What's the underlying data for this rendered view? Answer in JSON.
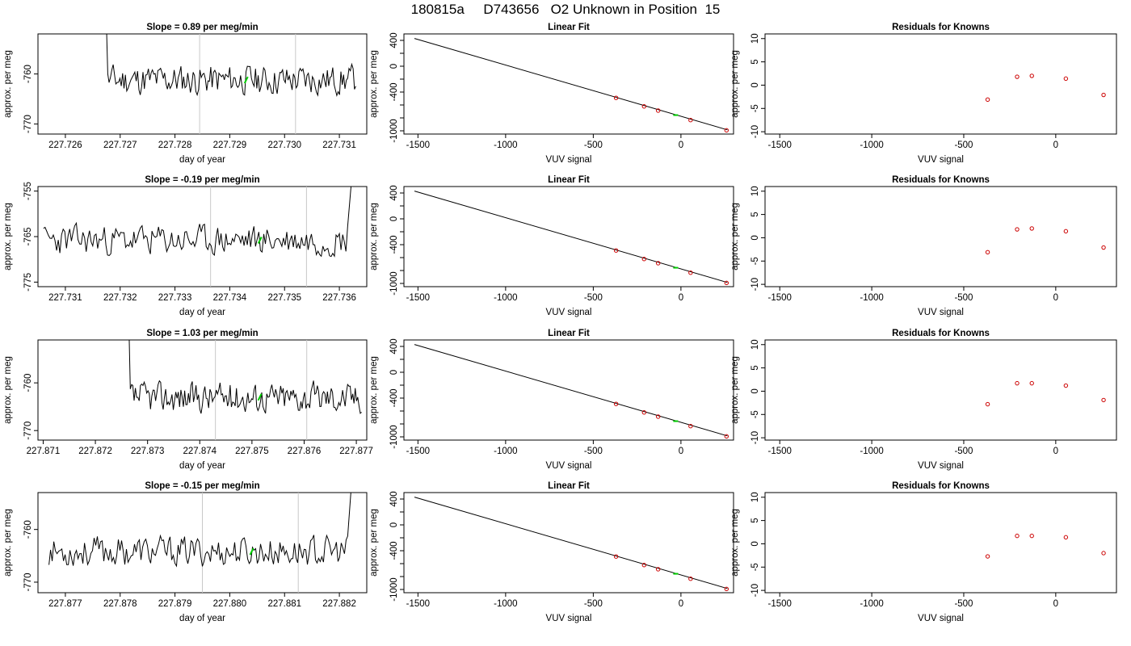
{
  "title": "180815a     D743656   O2 Unknown in Position  15",
  "colors": {
    "trace": "#000000",
    "marker": "#00cc00",
    "known_points": "#cc0000",
    "vline": "#c8c8c8",
    "fit_line": "#000000"
  },
  "chart_data": [
    {
      "type": "line",
      "title": "Slope =  0.89  per meg/min",
      "xlabel": "day of year",
      "ylabel": "approx. per meg",
      "xlim": [
        227.7255,
        227.7315
      ],
      "ylim": [
        -772,
        -752
      ],
      "xticks": [
        "227.726",
        "227.727",
        "227.728",
        "227.729",
        "227.730",
        "227.731"
      ],
      "yticks": [
        "-760",
        "-770"
      ],
      "vlines": [
        227.72845,
        227.7302
      ],
      "highlight_point": {
        "x": 227.7293,
        "y": -761.2
      },
      "series_x_range": [
        227.7266,
        227.7313
      ],
      "trace_seed": 11
    },
    {
      "type": "line",
      "title": "Linear Fit",
      "xlabel": "VUV signal",
      "ylabel": "approx. per meg",
      "xlim": [
        -1580,
        300
      ],
      "ylim": [
        -1050,
        500
      ],
      "xticks": [
        "-1500",
        "-1000",
        "-500",
        "0"
      ],
      "yticks": [
        "400",
        "0",
        "-400",
        "-1000"
      ],
      "fit_line": {
        "x": [
          -1520,
          265
        ],
        "y": [
          430,
          -985
        ]
      },
      "points": [
        {
          "x": -370,
          "y": -490
        },
        {
          "x": -210,
          "y": -622
        },
        {
          "x": -130,
          "y": -687
        },
        {
          "x": 55,
          "y": -834
        },
        {
          "x": 260,
          "y": -992
        }
      ],
      "unknown_point": {
        "x": -30,
        "y": -757
      }
    },
    {
      "type": "scatter",
      "title": "Residuals for Knowns",
      "xlabel": "VUV signal",
      "ylabel": "approx. per meg",
      "xlim": [
        -1580,
        330
      ],
      "ylim": [
        -10.5,
        11
      ],
      "xticks": [
        "-1500",
        "-1000",
        "-500",
        "0"
      ],
      "yticks": [
        "10",
        "5",
        "0",
        "-5",
        "-10"
      ],
      "points": [
        {
          "x": -370,
          "y": -3.1
        },
        {
          "x": -210,
          "y": 1.8
        },
        {
          "x": -130,
          "y": 2.0
        },
        {
          "x": 55,
          "y": 1.4
        },
        {
          "x": 260,
          "y": -2.1
        }
      ]
    },
    {
      "type": "line",
      "title": "Slope =  -0.19  per meg/min",
      "xlabel": "day of year",
      "ylabel": "approx. per meg",
      "xlim": [
        227.7305,
        227.7365
      ],
      "ylim": [
        -776,
        -754
      ],
      "xticks": [
        "227.731",
        "227.732",
        "227.733",
        "227.734",
        "227.735",
        "227.736"
      ],
      "yticks": [
        "-755",
        "-765",
        "-775"
      ],
      "vlines": [
        227.73365,
        227.7354
      ],
      "highlight_point": {
        "x": 227.73455,
        "y": -765.8
      },
      "series_x_range": [
        227.7306,
        227.7363
      ],
      "trace_seed": 23
    },
    {
      "type": "line",
      "title": "Linear Fit",
      "xlabel": "VUV signal",
      "ylabel": "approx. per meg",
      "xlim": [
        -1580,
        300
      ],
      "ylim": [
        -1050,
        500
      ],
      "xticks": [
        "-1500",
        "-1000",
        "-500",
        "0"
      ],
      "yticks": [
        "400",
        "0",
        "-400",
        "-1000"
      ],
      "fit_line": {
        "x": [
          -1520,
          265
        ],
        "y": [
          430,
          -985
        ]
      },
      "points": [
        {
          "x": -370,
          "y": -490
        },
        {
          "x": -210,
          "y": -622
        },
        {
          "x": -130,
          "y": -687
        },
        {
          "x": 55,
          "y": -834
        },
        {
          "x": 260,
          "y": -992
        }
      ],
      "unknown_point": {
        "x": -30,
        "y": -757
      }
    },
    {
      "type": "scatter",
      "title": "Residuals for Knowns",
      "xlabel": "VUV signal",
      "ylabel": "approx. per meg",
      "xlim": [
        -1580,
        330
      ],
      "ylim": [
        -10.5,
        11
      ],
      "xticks": [
        "-1500",
        "-1000",
        "-500",
        "0"
      ],
      "yticks": [
        "10",
        "5",
        "0",
        "-5",
        "-10"
      ],
      "points": [
        {
          "x": -370,
          "y": -3.1
        },
        {
          "x": -210,
          "y": 1.8
        },
        {
          "x": -130,
          "y": 2.0
        },
        {
          "x": 55,
          "y": 1.4
        },
        {
          "x": 260,
          "y": -2.1
        }
      ]
    },
    {
      "type": "line",
      "title": "Slope =  1.03  per meg/min",
      "xlabel": "day of year",
      "ylabel": "approx. per meg",
      "xlim": [
        227.8709,
        227.8772
      ],
      "ylim": [
        -772,
        -751
      ],
      "xticks": [
        "227.871",
        "227.872",
        "227.873",
        "227.874",
        "227.875",
        "227.876",
        "227.877"
      ],
      "yticks": [
        "-760",
        "-770"
      ],
      "vlines": [
        227.8743,
        227.87605
      ],
      "highlight_point": {
        "x": 227.87515,
        "y": -763.0
      },
      "series_x_range": [
        227.8725,
        227.8771
      ],
      "trace_seed": 37
    },
    {
      "type": "line",
      "title": "Linear Fit",
      "xlabel": "VUV signal",
      "ylabel": "approx. per meg",
      "xlim": [
        -1580,
        300
      ],
      "ylim": [
        -1050,
        500
      ],
      "xticks": [
        "-1500",
        "-1000",
        "-500",
        "0"
      ],
      "yticks": [
        "400",
        "0",
        "-400",
        "-1000"
      ],
      "fit_line": {
        "x": [
          -1520,
          265
        ],
        "y": [
          430,
          -985
        ]
      },
      "points": [
        {
          "x": -370,
          "y": -490
        },
        {
          "x": -210,
          "y": -622
        },
        {
          "x": -130,
          "y": -687
        },
        {
          "x": 55,
          "y": -834
        },
        {
          "x": 260,
          "y": -992
        }
      ],
      "unknown_point": {
        "x": -30,
        "y": -757
      }
    },
    {
      "type": "scatter",
      "title": "Residuals for Knowns",
      "xlabel": "VUV signal",
      "ylabel": "approx. per meg",
      "xlim": [
        -1580,
        330
      ],
      "ylim": [
        -10.5,
        11
      ],
      "xticks": [
        "-1500",
        "-1000",
        "-500",
        "0"
      ],
      "yticks": [
        "10",
        "5",
        "0",
        "-5",
        "-10"
      ],
      "points": [
        {
          "x": -370,
          "y": -2.8
        },
        {
          "x": -210,
          "y": 1.7
        },
        {
          "x": -130,
          "y": 1.7
        },
        {
          "x": 55,
          "y": 1.2
        },
        {
          "x": 260,
          "y": -1.9
        }
      ]
    },
    {
      "type": "line",
      "title": "Slope =  -0.15  per meg/min",
      "xlabel": "day of year",
      "ylabel": "approx. per meg",
      "xlim": [
        227.8765,
        227.8825
      ],
      "ylim": [
        -772,
        -753
      ],
      "xticks": [
        "227.877",
        "227.878",
        "227.879",
        "227.880",
        "227.881",
        "227.882"
      ],
      "yticks": [
        "-760",
        "-770"
      ],
      "vlines": [
        227.8795,
        227.88125
      ],
      "highlight_point": {
        "x": 227.8804,
        "y": -764.2
      },
      "series_x_range": [
        227.8767,
        227.8823
      ],
      "trace_seed": 53
    },
    {
      "type": "line",
      "title": "Linear Fit",
      "xlabel": "VUV signal",
      "ylabel": "approx. per meg",
      "xlim": [
        -1580,
        300
      ],
      "ylim": [
        -1050,
        500
      ],
      "xticks": [
        "-1500",
        "-1000",
        "-500",
        "0"
      ],
      "yticks": [
        "400",
        "0",
        "-400",
        "-1000"
      ],
      "fit_line": {
        "x": [
          -1520,
          265
        ],
        "y": [
          430,
          -985
        ]
      },
      "points": [
        {
          "x": -370,
          "y": -490
        },
        {
          "x": -210,
          "y": -622
        },
        {
          "x": -130,
          "y": -687
        },
        {
          "x": 55,
          "y": -834
        },
        {
          "x": 260,
          "y": -992
        }
      ],
      "unknown_point": {
        "x": -30,
        "y": -757
      }
    },
    {
      "type": "scatter",
      "title": "Residuals for Knowns",
      "xlabel": "VUV signal",
      "ylabel": "approx. per meg",
      "xlim": [
        -1580,
        330
      ],
      "ylim": [
        -10.5,
        11
      ],
      "xticks": [
        "-1500",
        "-1000",
        "-500",
        "0"
      ],
      "yticks": [
        "10",
        "5",
        "0",
        "-5",
        "-10"
      ],
      "points": [
        {
          "x": -370,
          "y": -2.7
        },
        {
          "x": -210,
          "y": 1.7
        },
        {
          "x": -130,
          "y": 1.7
        },
        {
          "x": 55,
          "y": 1.4
        },
        {
          "x": 260,
          "y": -2.0
        }
      ]
    }
  ]
}
